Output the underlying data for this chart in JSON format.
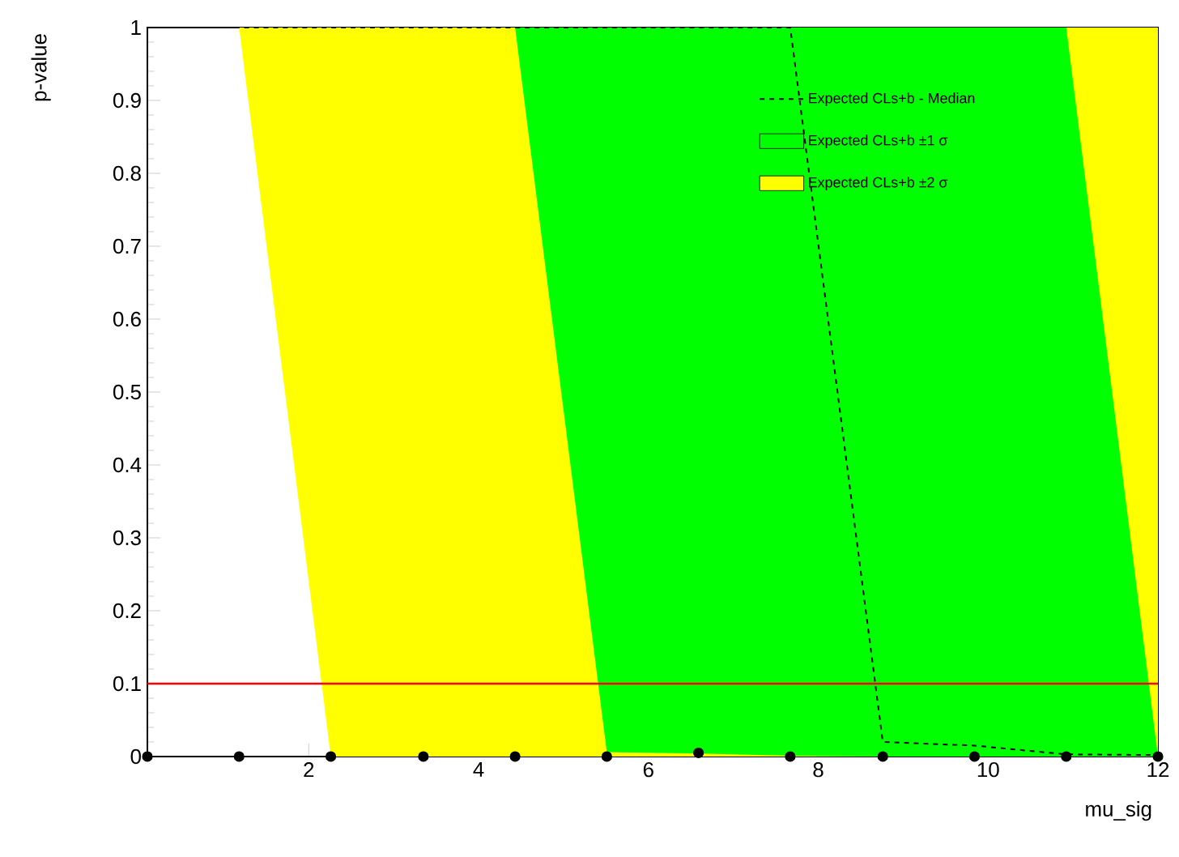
{
  "chart_data": {
    "type": "scatter",
    "xlabel": "mu_sig",
    "ylabel": "p-value",
    "x": [
      0.1,
      1.18,
      2.26,
      3.35,
      4.43,
      5.51,
      6.59,
      7.67,
      8.76,
      9.84,
      10.92,
      12.0
    ],
    "series": [
      {
        "name": "Expected CLs+b  ±2 σ",
        "type": "line",
        "color": "#ffff00",
        "values": [
          null,
          null,
          null,
          null,
          null,
          null,
          null,
          null,
          null,
          null,
          null,
          null
        ],
        "lower": [
          null,
          1,
          0,
          0,
          0,
          0,
          0,
          0,
          0,
          0,
          0,
          0
        ],
        "upper": [
          null,
          1,
          1,
          1,
          1,
          1,
          1,
          1,
          1,
          1,
          1,
          1
        ]
      },
      {
        "name": "Expected CLs+b  ±1 σ",
        "type": "line",
        "color": "#00ff00",
        "values": [
          null,
          null,
          null,
          null,
          null,
          null,
          null,
          null,
          null,
          null,
          null,
          null
        ],
        "lower": [
          null,
          null,
          null,
          null,
          1,
          0.006,
          0.004,
          0.001,
          0,
          0,
          0,
          0
        ],
        "upper": [
          null,
          null,
          null,
          null,
          1,
          1,
          1,
          1,
          1,
          1,
          1,
          0
        ]
      },
      {
        "name": "Expected CLs+b - Median",
        "type": "line",
        "color": "#000000",
        "line_style": "dashed",
        "marker": "none",
        "values": [
          1,
          1,
          1,
          1,
          1,
          1,
          1,
          1,
          0.02,
          0.015,
          0.003,
          0.002
        ]
      },
      {
        "color": "#000000",
        "marker": "circle",
        "values": [
          0,
          0,
          0,
          0,
          0,
          0,
          0.005,
          0,
          0,
          0,
          0,
          0
        ]
      }
    ],
    "ref_lines": [
      {
        "axis": "y",
        "value": 0.1,
        "color": "#ff0000"
      }
    ],
    "xlim": [
      0.1,
      12.0
    ],
    "ylim": [
      0,
      1
    ],
    "xticks": [
      2,
      4,
      6,
      8,
      10,
      12
    ],
    "yticks": [
      0,
      0.1,
      0.2,
      0.3,
      0.4,
      0.5,
      0.6,
      0.7,
      0.8,
      0.9,
      1
    ],
    "legend": "top right",
    "grid": false
  }
}
